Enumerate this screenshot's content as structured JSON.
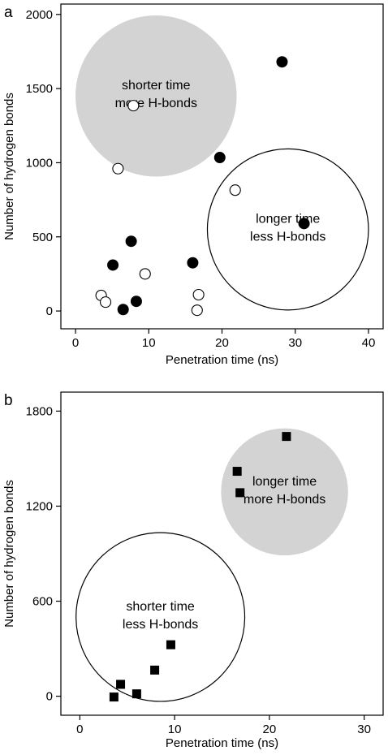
{
  "chart_data": [
    {
      "type": "scatter",
      "panel_label": "a",
      "xlabel": "Penetration time (ns)",
      "ylabel": "Number of hydrogen bonds",
      "xlim": [
        -2,
        42
      ],
      "ylim": [
        -120,
        2070
      ],
      "xticks": [
        0,
        10,
        20,
        30,
        40
      ],
      "yticks": [
        0,
        500,
        1000,
        1500,
        2000
      ],
      "series": [
        {
          "marker": "filled-circle",
          "color": "#000000",
          "points": [
            [
              28.2,
              1680
            ],
            [
              19.7,
              1035
            ],
            [
              31.2,
              590
            ],
            [
              7.6,
              470
            ],
            [
              5.1,
              310
            ],
            [
              16.0,
              325
            ],
            [
              8.3,
              65
            ],
            [
              6.5,
              10
            ]
          ]
        },
        {
          "marker": "open-circle",
          "color": "#000000",
          "points": [
            [
              7.9,
              1385
            ],
            [
              5.8,
              960
            ],
            [
              21.8,
              815
            ],
            [
              9.5,
              250
            ],
            [
              3.5,
              105
            ],
            [
              4.1,
              60
            ],
            [
              16.8,
              110
            ],
            [
              16.6,
              5
            ]
          ]
        }
      ],
      "regions": [
        {
          "style": "filled",
          "color": "#d3d3d3",
          "cx": 11.0,
          "cy": 1450,
          "r_x": 11.0,
          "text": [
            "shorter time",
            "more H-bonds"
          ]
        },
        {
          "style": "outline",
          "color": "#000000",
          "cx": 29.0,
          "cy": 550,
          "r_x": 11.0,
          "text": [
            "longer time",
            "less H-bonds"
          ]
        }
      ]
    },
    {
      "type": "scatter",
      "panel_label": "b",
      "xlabel": "Penetration time (ns)",
      "ylabel": "Number of hydrogen bonds",
      "xlim": [
        -2,
        32
      ],
      "ylim": [
        -120,
        1920
      ],
      "xticks": [
        0,
        10,
        20,
        30
      ],
      "yticks": [
        0,
        600,
        1200,
        1800
      ],
      "series": [
        {
          "marker": "filled-square",
          "color": "#000000",
          "points": [
            [
              21.8,
              1640
            ],
            [
              16.6,
              1420
            ],
            [
              16.9,
              1285
            ],
            [
              9.6,
              325
            ],
            [
              7.9,
              165
            ],
            [
              4.3,
              75
            ],
            [
              6.0,
              15
            ],
            [
              3.6,
              -5
            ]
          ]
        }
      ],
      "regions": [
        {
          "style": "filled",
          "color": "#d3d3d3",
          "cx": 21.6,
          "cy": 1290,
          "r_x": 6.7,
          "text": [
            "longer time",
            "more H-bonds"
          ]
        },
        {
          "style": "outline",
          "color": "#000000",
          "cx": 8.5,
          "cy": 500,
          "r_x": 8.9,
          "text": [
            "shorter time",
            "less H-bonds"
          ]
        }
      ]
    }
  ]
}
